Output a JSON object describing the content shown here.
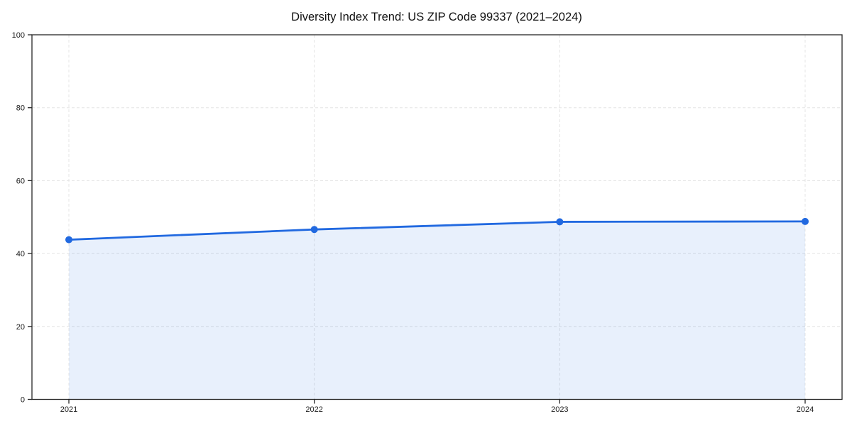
{
  "page": {
    "background": "#ffffff"
  },
  "chart_data": {
    "type": "line",
    "title": "Diversity Index Trend: US ZIP Code 99337 (2021–2024)",
    "categories": [
      "2021",
      "2022",
      "2023",
      "2024"
    ],
    "values": [
      43.8,
      46.6,
      48.7,
      48.8
    ],
    "xlabel": "",
    "ylabel": "",
    "ylim": [
      0,
      100
    ],
    "yticks": [
      0,
      20,
      40,
      60,
      80,
      100
    ],
    "grid": true,
    "grid_style": "dashed",
    "legend": false,
    "area_fill": true,
    "marker": "circle",
    "colors": {
      "line": "#2169E0",
      "marker": "#2169E0",
      "area": "rgba(33,105,224,0.10)",
      "grid": "#e4e4e4",
      "axis": "#262626",
      "tick_text": "#1a1a1a",
      "title_text": "#111111"
    }
  }
}
